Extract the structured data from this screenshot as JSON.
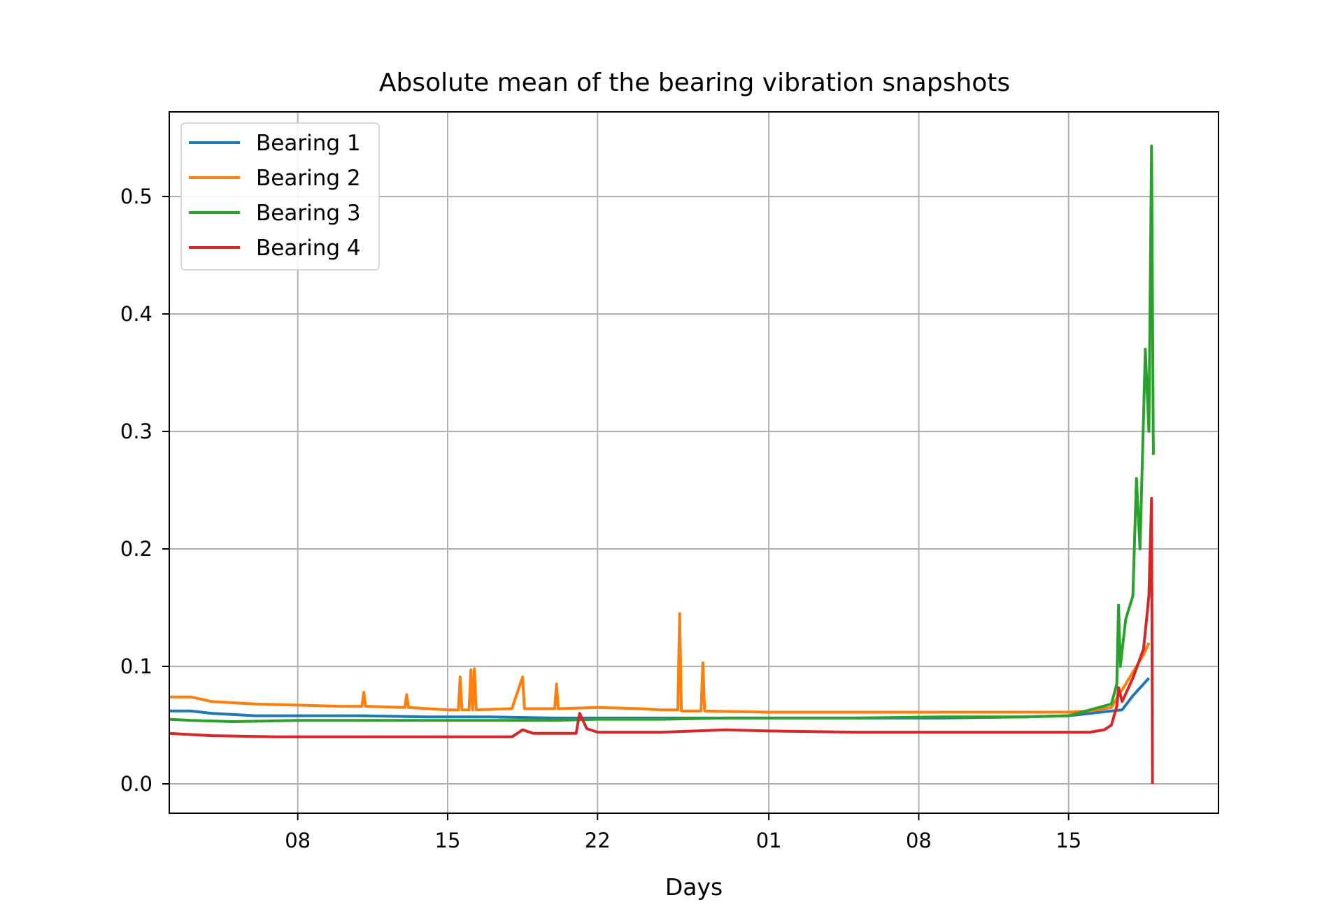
{
  "chart_data": {
    "type": "line",
    "title": "Absolute mean of the bearing vibration snapshots",
    "xlabel": "Days",
    "ylabel": "",
    "x_unit": "date",
    "xlim": [
      "2004-02-02",
      "2004-03-22"
    ],
    "ylim": [
      -0.025,
      0.572
    ],
    "x_ticks": [
      {
        "date": "2004-02-08",
        "label": "08"
      },
      {
        "date": "2004-02-15",
        "label": "15"
      },
      {
        "date": "2004-02-22",
        "label": "22"
      },
      {
        "date": "2004-03-01",
        "label": "01"
      },
      {
        "date": "2004-03-08",
        "label": "08"
      },
      {
        "date": "2004-03-15",
        "label": "15"
      }
    ],
    "y_ticks": [
      {
        "value": 0.0,
        "label": "0.0"
      },
      {
        "value": 0.1,
        "label": "0.1"
      },
      {
        "value": 0.2,
        "label": "0.2"
      },
      {
        "value": 0.3,
        "label": "0.3"
      },
      {
        "value": 0.4,
        "label": "0.4"
      },
      {
        "value": 0.5,
        "label": "0.5"
      }
    ],
    "grid": true,
    "legend_position": "top-left",
    "series": [
      {
        "name": "Bearing 1",
        "color": "#1f77b4",
        "points": [
          [
            "2004-02-02",
            0.062
          ],
          [
            "2004-02-03",
            0.062
          ],
          [
            "2004-02-04",
            0.06
          ],
          [
            "2004-02-05",
            0.059
          ],
          [
            "2004-02-06",
            0.058
          ],
          [
            "2004-02-08",
            0.058
          ],
          [
            "2004-02-11",
            0.058
          ],
          [
            "2004-02-14",
            0.057
          ],
          [
            "2004-02-17",
            0.057
          ],
          [
            "2004-02-20",
            0.056
          ],
          [
            "2004-02-22",
            0.056
          ],
          [
            "2004-02-25",
            0.056
          ],
          [
            "2004-02-28",
            0.056
          ],
          [
            "2004-03-01",
            0.056
          ],
          [
            "2004-03-05",
            0.056
          ],
          [
            "2004-03-09",
            0.056
          ],
          [
            "2004-03-13",
            0.057
          ],
          [
            "2004-03-15",
            0.058
          ],
          [
            "2004-03-16",
            0.06
          ],
          [
            "2004-03-17",
            0.062
          ],
          [
            "2004-03-17 12:00",
            0.063
          ],
          [
            "2004-03-18",
            0.075
          ],
          [
            "2004-03-18 12:00",
            0.085
          ],
          [
            "2004-03-18 18:00",
            0.09
          ]
        ]
      },
      {
        "name": "Bearing 2",
        "color": "#ff7f0e",
        "points": [
          [
            "2004-02-02",
            0.074
          ],
          [
            "2004-02-03",
            0.074
          ],
          [
            "2004-02-04",
            0.07
          ],
          [
            "2004-02-06",
            0.068
          ],
          [
            "2004-02-08",
            0.067
          ],
          [
            "2004-02-10",
            0.066
          ],
          [
            "2004-02-11",
            0.066
          ],
          [
            "2004-02-11 02:00",
            0.078
          ],
          [
            "2004-02-11 04:00",
            0.066
          ],
          [
            "2004-02-13",
            0.065
          ],
          [
            "2004-02-13 02:00",
            0.076
          ],
          [
            "2004-02-13 04:00",
            0.065
          ],
          [
            "2004-02-15",
            0.063
          ],
          [
            "2004-02-15 12:00",
            0.063
          ],
          [
            "2004-02-15 14:00",
            0.091
          ],
          [
            "2004-02-15 16:00",
            0.063
          ],
          [
            "2004-02-16",
            0.063
          ],
          [
            "2004-02-16 02:00",
            0.097
          ],
          [
            "2004-02-16 04:00",
            0.063
          ],
          [
            "2004-02-16 06:00",
            0.098
          ],
          [
            "2004-02-16 08:00",
            0.063
          ],
          [
            "2004-02-18",
            0.064
          ],
          [
            "2004-02-18 12:00",
            0.091
          ],
          [
            "2004-02-18 14:00",
            0.064
          ],
          [
            "2004-02-20",
            0.064
          ],
          [
            "2004-02-20 02:00",
            0.085
          ],
          [
            "2004-02-20 04:00",
            0.064
          ],
          [
            "2004-02-22",
            0.065
          ],
          [
            "2004-02-24",
            0.064
          ],
          [
            "2004-02-25",
            0.063
          ],
          [
            "2004-02-25 18:00",
            0.063
          ],
          [
            "2004-02-25 20:00",
            0.145
          ],
          [
            "2004-02-25 22:00",
            0.062
          ],
          [
            "2004-02-26 20:00",
            0.062
          ],
          [
            "2004-02-26 22:00",
            0.103
          ],
          [
            "2004-02-27",
            0.062
          ],
          [
            "2004-03-01",
            0.061
          ],
          [
            "2004-03-05",
            0.061
          ],
          [
            "2004-03-09",
            0.061
          ],
          [
            "2004-03-13",
            0.061
          ],
          [
            "2004-03-15",
            0.061
          ],
          [
            "2004-03-16",
            0.062
          ],
          [
            "2004-03-17",
            0.065
          ],
          [
            "2004-03-17 12:00",
            0.08
          ],
          [
            "2004-03-18",
            0.095
          ],
          [
            "2004-03-18 12:00",
            0.11
          ],
          [
            "2004-03-18 18:00",
            0.12
          ]
        ]
      },
      {
        "name": "Bearing 3",
        "color": "#2ca02c",
        "points": [
          [
            "2004-02-02",
            0.055
          ],
          [
            "2004-02-03",
            0.054
          ],
          [
            "2004-02-05",
            0.053
          ],
          [
            "2004-02-08",
            0.054
          ],
          [
            "2004-02-11",
            0.054
          ],
          [
            "2004-02-14",
            0.054
          ],
          [
            "2004-02-17",
            0.054
          ],
          [
            "2004-02-20",
            0.054
          ],
          [
            "2004-02-22",
            0.055
          ],
          [
            "2004-02-25",
            0.055
          ],
          [
            "2004-02-28",
            0.056
          ],
          [
            "2004-03-01",
            0.056
          ],
          [
            "2004-03-05",
            0.056
          ],
          [
            "2004-03-09",
            0.057
          ],
          [
            "2004-03-13",
            0.057
          ],
          [
            "2004-03-15",
            0.058
          ],
          [
            "2004-03-16",
            0.063
          ],
          [
            "2004-03-17",
            0.068
          ],
          [
            "2004-03-17 06:00",
            0.085
          ],
          [
            "2004-03-17 08:00",
            0.152
          ],
          [
            "2004-03-17 10:00",
            0.1
          ],
          [
            "2004-03-17 16:00",
            0.14
          ],
          [
            "2004-03-18",
            0.16
          ],
          [
            "2004-03-18 04:00",
            0.26
          ],
          [
            "2004-03-18 08:00",
            0.2
          ],
          [
            "2004-03-18 14:00",
            0.37
          ],
          [
            "2004-03-18 18:00",
            0.3
          ],
          [
            "2004-03-18 21:00",
            0.543
          ],
          [
            "2004-03-18 23:00",
            0.28
          ]
        ]
      },
      {
        "name": "Bearing 4",
        "color": "#d62728",
        "points": [
          [
            "2004-02-02",
            0.043
          ],
          [
            "2004-02-04",
            0.041
          ],
          [
            "2004-02-07",
            0.04
          ],
          [
            "2004-02-11",
            0.04
          ],
          [
            "2004-02-15",
            0.04
          ],
          [
            "2004-02-18",
            0.04
          ],
          [
            "2004-02-18 12:00",
            0.046
          ],
          [
            "2004-02-19",
            0.043
          ],
          [
            "2004-02-21",
            0.043
          ],
          [
            "2004-02-21 04:00",
            0.06
          ],
          [
            "2004-02-21 12:00",
            0.047
          ],
          [
            "2004-02-22",
            0.044
          ],
          [
            "2004-02-25",
            0.044
          ],
          [
            "2004-02-28",
            0.046
          ],
          [
            "2004-03-01",
            0.045
          ],
          [
            "2004-03-05",
            0.044
          ],
          [
            "2004-03-09",
            0.044
          ],
          [
            "2004-03-13",
            0.044
          ],
          [
            "2004-03-16",
            0.044
          ],
          [
            "2004-03-16 16:00",
            0.046
          ],
          [
            "2004-03-17",
            0.05
          ],
          [
            "2004-03-17 06:00",
            0.066
          ],
          [
            "2004-03-17 08:00",
            0.082
          ],
          [
            "2004-03-17 12:00",
            0.07
          ],
          [
            "2004-03-18",
            0.09
          ],
          [
            "2004-03-18 12:00",
            0.115
          ],
          [
            "2004-03-18 18:00",
            0.16
          ],
          [
            "2004-03-18 21:00",
            0.243
          ],
          [
            "2004-03-18 22:00",
            0.0
          ]
        ]
      }
    ]
  }
}
